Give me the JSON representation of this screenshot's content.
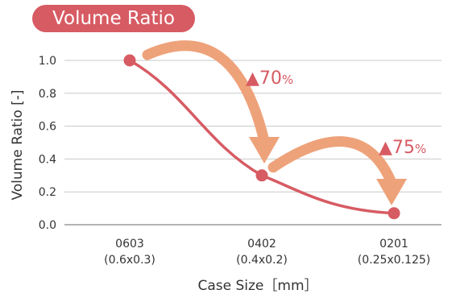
{
  "chart_data": {
    "type": "line",
    "title": "Volume Ratio",
    "xlabel": "Case Size［mm］",
    "ylabel": "Volume Ratio [-]",
    "categories": [
      "0603",
      "0402",
      "0201"
    ],
    "category_sublabels": [
      "(0.6x0.3)",
      "(0.4x0.2)",
      "(0.25x0.125)"
    ],
    "series": [
      {
        "values": [
          1.0,
          0.3,
          0.07
        ]
      }
    ],
    "ylim": [
      0,
      1.0
    ],
    "yticks": [
      "0.0",
      "0.2",
      "0.4",
      "0.6",
      "0.8",
      "1.0"
    ],
    "grid": true,
    "line_color": "#d75b63",
    "arrow_color": "#eea27a",
    "annotations": [
      {
        "symbol": "▲",
        "value": "70",
        "unit": "%",
        "from": "0603",
        "to": "0402"
      },
      {
        "symbol": "▲",
        "value": "75",
        "unit": "%",
        "from": "0402",
        "to": "0201"
      }
    ]
  }
}
